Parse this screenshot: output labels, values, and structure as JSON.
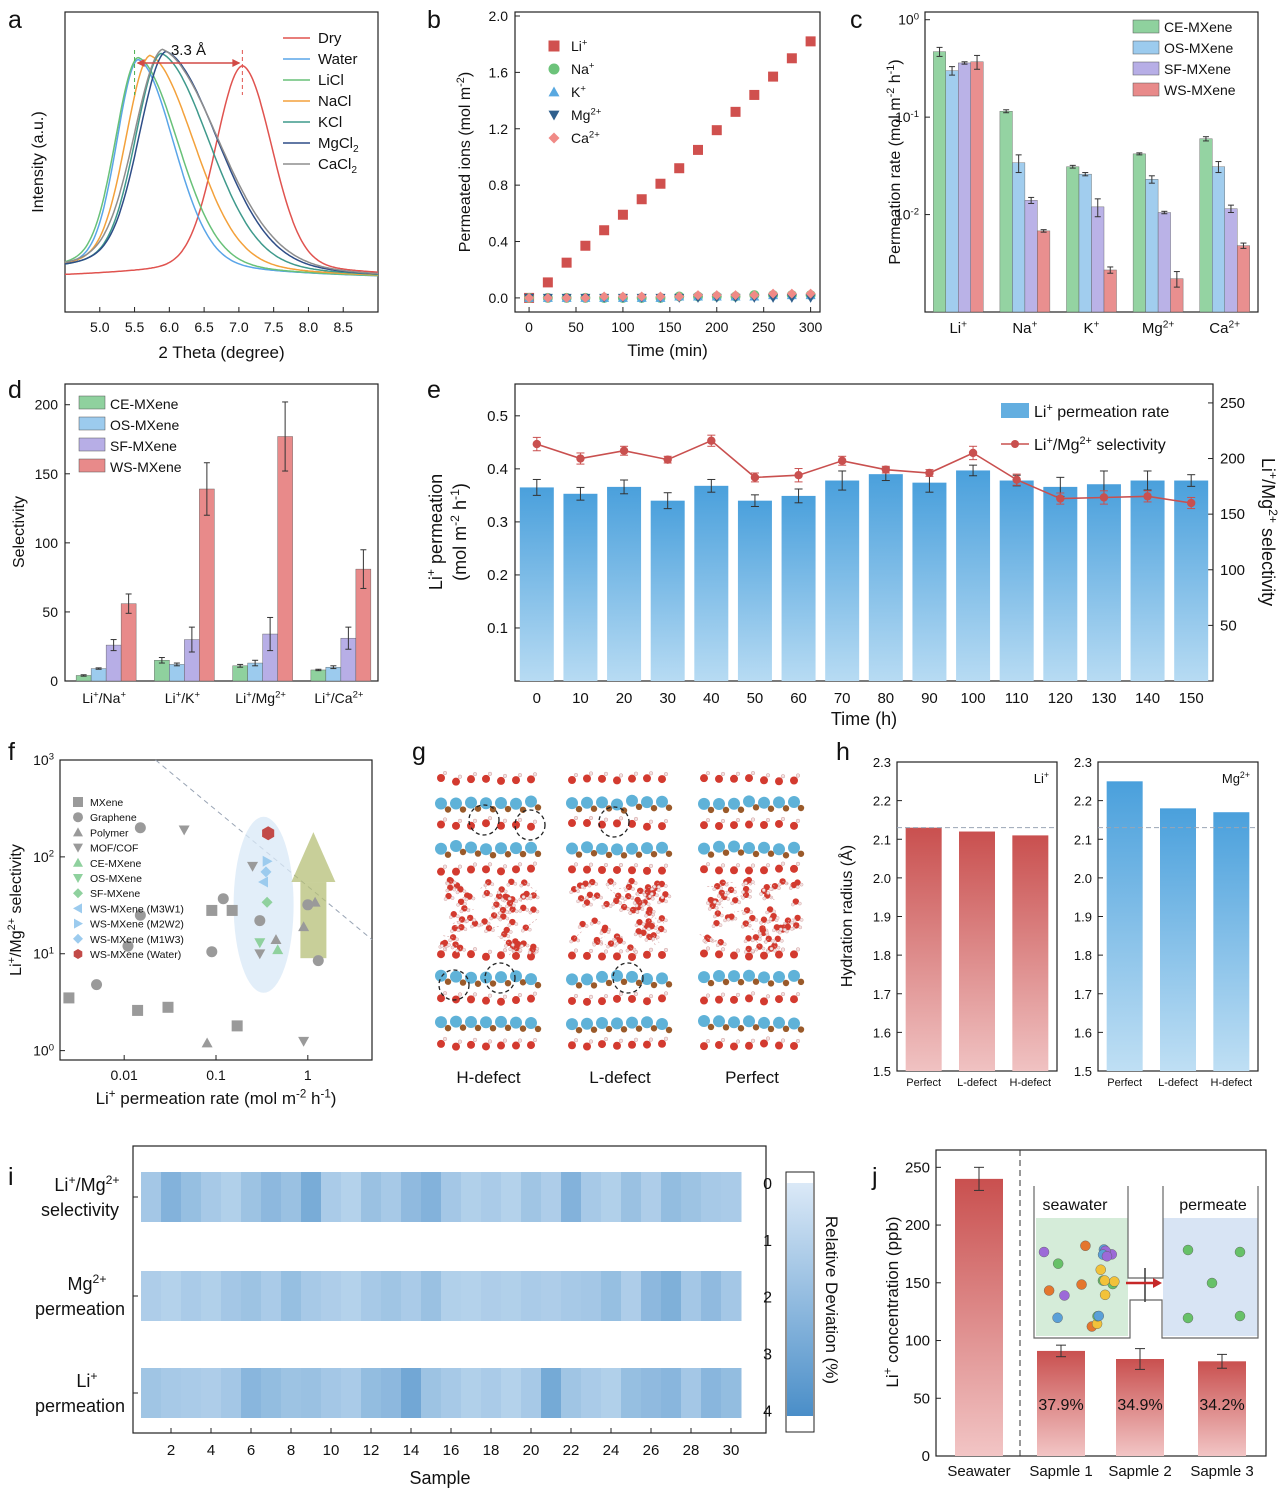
{
  "panel_letters": [
    "a",
    "b",
    "c",
    "d",
    "e",
    "f",
    "g",
    "h",
    "i",
    "j"
  ],
  "colors": {
    "ce": "#8fd19e",
    "os": "#9ccbee",
    "sf": "#b7aee6",
    "ws": "#e88a8a",
    "bar_blue": "#63aee0",
    "line_red": "#c9504f",
    "ws_dark": "#c24a48"
  },
  "chart_data": [
    {
      "panel": "a",
      "type": "line",
      "xlabel": "2 Theta (degree)",
      "ylabel": "Intensity (a.u.)",
      "xlim": [
        4.5,
        9.0
      ],
      "xticks": [
        5.0,
        5.5,
        6.0,
        6.5,
        7.0,
        7.5,
        8.0,
        8.5
      ],
      "annotation": "3.3 Å",
      "series": [
        {
          "name": "Dry",
          "color": "#e0534f",
          "peak": 7.05
        },
        {
          "name": "Water",
          "color": "#5aa5e8",
          "peak": 5.55
        },
        {
          "name": "LiCl",
          "color": "#68c179",
          "peak": 5.55
        },
        {
          "name": "NaCl",
          "color": "#f3a13b",
          "peak": 5.72
        },
        {
          "name": "KCl",
          "color": "#3f9a8c",
          "peak": 5.88
        },
        {
          "name": "MgCl_2",
          "color": "#2e4d87",
          "peak": 5.95
        },
        {
          "name": "CaCl_2",
          "color": "#8e8e8e",
          "peak": 5.9
        }
      ]
    },
    {
      "panel": "b",
      "type": "scatter",
      "xlabel": "Time (min)",
      "ylabel": "Permeated ions (mol m^-2)",
      "xlim": [
        -15,
        310
      ],
      "ylim": [
        -0.1,
        2.0
      ],
      "xticks": [
        0,
        50,
        100,
        150,
        200,
        250,
        300
      ],
      "yticks": [
        0.0,
        0.4,
        0.8,
        1.2,
        1.6,
        2.0
      ],
      "x": [
        0,
        20,
        40,
        60,
        80,
        100,
        120,
        140,
        160,
        180,
        200,
        220,
        240,
        260,
        280,
        300
      ],
      "series": [
        {
          "name": "Li^+",
          "marker": "square",
          "color": "#d0504e",
          "values": [
            0.0,
            0.11,
            0.25,
            0.37,
            0.48,
            0.59,
            0.7,
            0.81,
            0.92,
            1.05,
            1.19,
            1.32,
            1.44,
            1.57,
            1.7,
            1.82
          ]
        },
        {
          "name": "Na^+",
          "marker": "circle",
          "color": "#6cc37a",
          "values": [
            0.0,
            0.0,
            0.0,
            0.0,
            0.0,
            0.0,
            0.0,
            0.0,
            0.01,
            0.01,
            0.01,
            0.01,
            0.02,
            0.02,
            0.02,
            0.02
          ]
        },
        {
          "name": "K^+",
          "marker": "triangle",
          "color": "#58a8e0",
          "values": [
            0.0,
            0.0,
            0.0,
            0.0,
            0.0,
            0.0,
            0.0,
            0.0,
            0.01,
            0.01,
            0.01,
            0.01,
            0.01,
            0.02,
            0.02,
            0.02
          ]
        },
        {
          "name": "Mg^2+",
          "marker": "tri-down",
          "color": "#2f5f8d",
          "values": [
            0.0,
            0.0,
            0.0,
            0.0,
            0.0,
            0.0,
            0.0,
            0.0,
            0.0,
            0.0,
            0.0,
            0.0,
            0.0,
            0.0,
            0.0,
            0.0
          ]
        },
        {
          "name": "Ca^2+",
          "marker": "diamond",
          "color": "#f08a86",
          "values": [
            0.0,
            0.0,
            0.0,
            0.0,
            0.01,
            0.01,
            0.01,
            0.01,
            0.01,
            0.02,
            0.02,
            0.02,
            0.02,
            0.03,
            0.03,
            0.03
          ]
        }
      ]
    },
    {
      "panel": "c",
      "type": "bar",
      "yscale": "log",
      "ylabel": "Permeation rate (mol m^-2 h^-1)",
      "ylim": [
        0.001,
        1.2
      ],
      "ytick_labels": [
        "10^0",
        "10^-1",
        "10^-2"
      ],
      "categories": [
        "Li^+",
        "Na^+",
        "K^+",
        "Mg^2+",
        "Ca^2+"
      ],
      "series": [
        {
          "name": "CE-MXene",
          "values": [
            0.47,
            0.115,
            0.031,
            0.042,
            0.06
          ],
          "errors": [
            0.05,
            0.004,
            0.001,
            0.001,
            0.003
          ]
        },
        {
          "name": "OS-MXene",
          "values": [
            0.3,
            0.034,
            0.026,
            0.023,
            0.031
          ],
          "errors": [
            0.03,
            0.007,
            0.001,
            0.002,
            0.004
          ]
        },
        {
          "name": "SF-MXene",
          "values": [
            0.36,
            0.014,
            0.012,
            0.0105,
            0.0115
          ],
          "errors": [
            0.01,
            0.001,
            0.0025,
            0.0003,
            0.001
          ]
        },
        {
          "name": "WS-MXene",
          "values": [
            0.37,
            0.0068,
            0.0027,
            0.0022,
            0.0048
          ],
          "errors": [
            0.06,
            0.0002,
            0.0002,
            0.0004,
            0.0003
          ]
        }
      ]
    },
    {
      "panel": "d",
      "type": "bar",
      "ylabel": "Selectivity",
      "ylim": [
        0,
        215
      ],
      "yticks": [
        0,
        50,
        100,
        150,
        200
      ],
      "categories": [
        "Li^+/Na^+",
        "Li^+/K^+",
        "Li^+/Mg^2+",
        "Li^+/Ca^2+"
      ],
      "series": [
        {
          "name": "CE-MXene",
          "values": [
            4,
            15,
            11,
            8
          ],
          "errors": [
            0.5,
            2,
            1,
            0.5
          ]
        },
        {
          "name": "OS-MXene",
          "values": [
            9,
            12,
            13,
            10
          ],
          "errors": [
            0.5,
            1,
            2,
            1
          ]
        },
        {
          "name": "SF-MXene",
          "values": [
            26,
            30,
            34,
            31
          ],
          "errors": [
            4,
            9,
            12,
            8
          ]
        },
        {
          "name": "WS-MXene",
          "values": [
            56,
            139,
            177,
            81
          ],
          "errors": [
            7,
            19,
            25,
            14
          ]
        }
      ]
    },
    {
      "panel": "e",
      "type": "bar",
      "xlabel": "Time (h)",
      "ylabel": "Li^+ permeation (mol m^-2 h^-1)",
      "ylabel_right": "Li^+/Mg^2+ selectivity",
      "ylim": [
        0,
        0.56
      ],
      "ylim_right": [
        0,
        267
      ],
      "yticks": [
        0.1,
        0.2,
        0.3,
        0.4,
        0.5
      ],
      "yticks_right": [
        50,
        100,
        150,
        200,
        250
      ],
      "categories": [
        "0",
        "10",
        "20",
        "30",
        "40",
        "50",
        "60",
        "70",
        "80",
        "90",
        "100",
        "110",
        "120",
        "130",
        "140",
        "150"
      ],
      "series": [
        {
          "name": "Li^+ permeation rate",
          "values": [
            0.365,
            0.353,
            0.366,
            0.34,
            0.368,
            0.34,
            0.349,
            0.378,
            0.39,
            0.374,
            0.397,
            0.378,
            0.366,
            0.371,
            0.378,
            0.378
          ],
          "errors": [
            0.015,
            0.012,
            0.013,
            0.015,
            0.012,
            0.011,
            0.013,
            0.018,
            0.012,
            0.018,
            0.01,
            0.01,
            0.018,
            0.025,
            0.018,
            0.011
          ]
        },
        {
          "name": "Li^+/Mg^2+ selectivity",
          "axis": "right",
          "values": [
            213,
            200,
            207,
            199,
            216,
            183,
            185,
            198,
            190,
            187,
            205,
            181,
            164,
            165,
            166,
            160
          ],
          "errors": [
            6,
            5,
            4,
            3,
            5,
            4,
            6,
            4,
            3,
            3,
            6,
            5,
            5,
            6,
            5,
            5
          ]
        }
      ]
    },
    {
      "panel": "f",
      "type": "scatter",
      "xscale": "log",
      "yscale": "log",
      "xlabel": "Li^+ permeation rate (mol m^-2 h^-1)",
      "ylabel": "Li^+/Mg^2+ selectivity",
      "xlim": [
        0.002,
        5
      ],
      "ylim": [
        0.8,
        1000
      ],
      "xtick_labels": [
        "0.01",
        "0.1",
        "1"
      ],
      "ytick_labels": [
        "10^0",
        "10^1",
        "10^2",
        "10^3"
      ],
      "series": [
        {
          "name": "MXene",
          "marker": "square",
          "color": "#9a9a9a",
          "points": [
            [
              0.0025,
              3.5
            ],
            [
              0.014,
              2.6
            ],
            [
              0.03,
              2.8
            ],
            [
              0.09,
              28
            ],
            [
              0.15,
              28
            ],
            [
              0.17,
              1.8
            ]
          ]
        },
        {
          "name": "Graphene",
          "marker": "circle",
          "color": "#9a9a9a",
          "points": [
            [
              0.005,
              4.8
            ],
            [
              0.015,
              200
            ],
            [
              0.015,
              25
            ],
            [
              0.011,
              12
            ],
            [
              0.09,
              10.5
            ],
            [
              0.12,
              37
            ],
            [
              0.3,
              22
            ],
            [
              1.3,
              8.5
            ],
            [
              1.0,
              32
            ]
          ]
        },
        {
          "name": "Polymer",
          "marker": "triangle",
          "color": "#9a9a9a",
          "points": [
            [
              0.08,
              1.2
            ],
            [
              0.45,
              14
            ],
            [
              0.9,
              19
            ],
            [
              1.2,
              34
            ]
          ]
        },
        {
          "name": "MOF/COF",
          "marker": "tri-down",
          "color": "#9a9a9a",
          "points": [
            [
              0.045,
              190
            ],
            [
              0.25,
              80
            ],
            [
              0.3,
              10
            ],
            [
              0.9,
              1.25
            ]
          ]
        },
        {
          "name": "CE-MXene",
          "marker": "triangle",
          "color": "#8fd19e",
          "points": [
            [
              0.47,
              11
            ]
          ]
        },
        {
          "name": "OS-MXene",
          "marker": "tri-down",
          "color": "#8fd19e",
          "points": [
            [
              0.3,
              13
            ]
          ]
        },
        {
          "name": "SF-MXene",
          "marker": "diamond",
          "color": "#8fd19e",
          "points": [
            [
              0.36,
              34
            ]
          ]
        },
        {
          "name": "WS-MXene (M3W1)",
          "marker": "tri-left",
          "color": "#9ccbee",
          "points": [
            [
              0.33,
              55
            ]
          ]
        },
        {
          "name": "WS-MXene (M2W2)",
          "marker": "tri-right",
          "color": "#9ccbee",
          "points": [
            [
              0.36,
              90
            ]
          ]
        },
        {
          "name": "WS-MXene (M1W3)",
          "marker": "diamond",
          "color": "#9ccbee",
          "points": [
            [
              0.35,
              70
            ]
          ]
        },
        {
          "name": "WS-MXene (Water)",
          "marker": "hexagon",
          "color": "#c24a48",
          "points": [
            [
              0.37,
              175
            ]
          ]
        }
      ]
    },
    {
      "panel": "g",
      "type": "table",
      "labels": [
        "H-defect",
        "L-defect",
        "Perfect"
      ]
    },
    {
      "panel": "h",
      "type": "bar",
      "ylabel": "Hydration radius (Å)",
      "ylim": [
        1.5,
        2.3
      ],
      "yticks": [
        1.5,
        1.6,
        1.7,
        1.8,
        1.9,
        2.0,
        2.1,
        2.2,
        2.3
      ],
      "subplots": [
        {
          "ion": "Li^+",
          "categories": [
            "Perfect",
            "L-defect",
            "H-defect"
          ],
          "values": [
            2.13,
            2.12,
            2.11
          ]
        },
        {
          "ion": "Mg^2+",
          "categories": [
            "Perfect",
            "L-defect",
            "H-defect"
          ],
          "values": [
            2.25,
            2.18,
            2.17
          ]
        }
      ],
      "reference_line": 2.13
    },
    {
      "panel": "i",
      "type": "heatmap",
      "xlabel": "Sample",
      "colorbar_label": "Relative Deviation (%)",
      "colorbar_ticks": [
        0,
        1,
        2,
        3,
        4
      ],
      "xticks": [
        2,
        4,
        6,
        8,
        10,
        12,
        14,
        16,
        18,
        20,
        22,
        24,
        26,
        28,
        30
      ],
      "rows": [
        {
          "label_lines": [
            "Li^+/Mg^2+",
            "selectivity"
          ],
          "values": [
            1.6,
            2.6,
            2.0,
            1.5,
            1.2,
            1.8,
            2.3,
            1.9,
            2.9,
            1.4,
            1.1,
            1.9,
            1.5,
            2.2,
            2.6,
            1.6,
            1.2,
            1.4,
            1.1,
            1.7,
            1.3,
            2.6,
            1.5,
            1.2,
            1.9,
            1.3,
            2.1,
            1.8,
            1.5,
            1.4
          ]
        },
        {
          "label_lines": [
            "Mg^2+",
            "permeation"
          ],
          "values": [
            1.3,
            1.1,
            1.4,
            1.2,
            1.6,
            1.8,
            1.4,
            2.0,
            1.5,
            1.3,
            1.1,
            1.5,
            1.7,
            1.4,
            1.9,
            1.2,
            1.1,
            1.3,
            1.2,
            1.4,
            1.3,
            1.5,
            1.6,
            2.0,
            1.3,
            2.3,
            2.7,
            1.6,
            2.2,
            1.6
          ]
        },
        {
          "label_lines": [
            "Li^+",
            "permeation"
          ],
          "values": [
            1.7,
            1.5,
            1.4,
            1.3,
            1.6,
            2.4,
            2.1,
            1.8,
            1.9,
            1.6,
            1.4,
            2.1,
            2.3,
            3.1,
            1.8,
            1.5,
            1.2,
            1.4,
            1.1,
            1.5,
            3.0,
            1.7,
            1.4,
            1.2,
            2.0,
            2.2,
            2.4,
            1.6,
            2.4,
            2.1
          ]
        }
      ]
    },
    {
      "panel": "j",
      "type": "bar",
      "ylabel": "Li^+ concentration (ppb)",
      "ylim": [
        0,
        265
      ],
      "yticks": [
        0,
        50,
        100,
        150,
        200,
        250
      ],
      "categories": [
        "Seawater",
        "Sapmle 1",
        "Sapmle 2",
        "Sapmle 3"
      ],
      "values": [
        240,
        91,
        84,
        82
      ],
      "errors": [
        10,
        5,
        9,
        6
      ],
      "bar_labels": [
        "",
        "37.9%",
        "34.9%",
        "34.2%"
      ],
      "inset_labels": [
        "seawater",
        "permeate"
      ]
    }
  ]
}
